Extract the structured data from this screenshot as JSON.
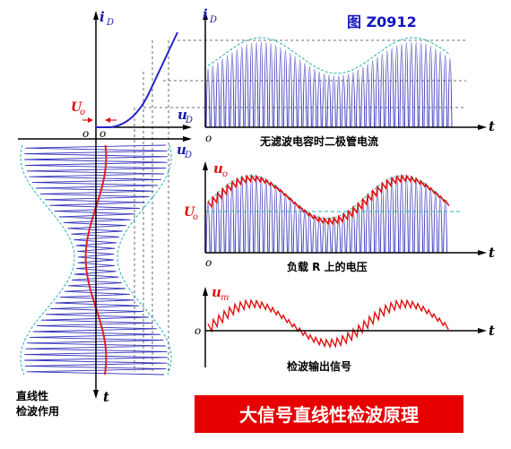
{
  "figure_title": "图 Z0912",
  "banner": {
    "text": "大信号直线性检波原理",
    "bg": "#e60000",
    "fg": "#ffffff"
  },
  "left_panel": {
    "axis_current": "i",
    "axis_current_sub": "D",
    "axis_voltage": "u",
    "axis_voltage_sub": "D",
    "axis_voltage2": "u",
    "axis_voltage2_sub": "D",
    "threshold_label": "U",
    "threshold_sub": "o",
    "origin_a": "o",
    "origin_b": "o",
    "time_label": "t",
    "caption_line1": "直线性",
    "caption_line2": "检波作用"
  },
  "panel_current": {
    "axis_y": "i",
    "axis_y_sub": "D",
    "axis_t": "t",
    "origin": "o",
    "caption": "无滤波电容时二极管电流"
  },
  "panel_voltage": {
    "axis_y": "u",
    "axis_y_sub": "o",
    "axis_t": "t",
    "origin": "o",
    "ref_label": "U",
    "ref_sub": "o",
    "caption": "负载 R 上的电压"
  },
  "panel_output": {
    "axis_y": "u",
    "axis_y_sub": "m",
    "axis_t": "t",
    "origin": "o",
    "caption": "检波输出信号"
  },
  "colors": {
    "axis": "#000000",
    "carrier": "#3333bb",
    "diode_curve": "#2222cc",
    "envelope": "#20b0b0",
    "signal": "#e02020",
    "label_blue": "#1a1aaa",
    "label_red": "#dd1111",
    "title_blue": "#1515c0"
  }
}
